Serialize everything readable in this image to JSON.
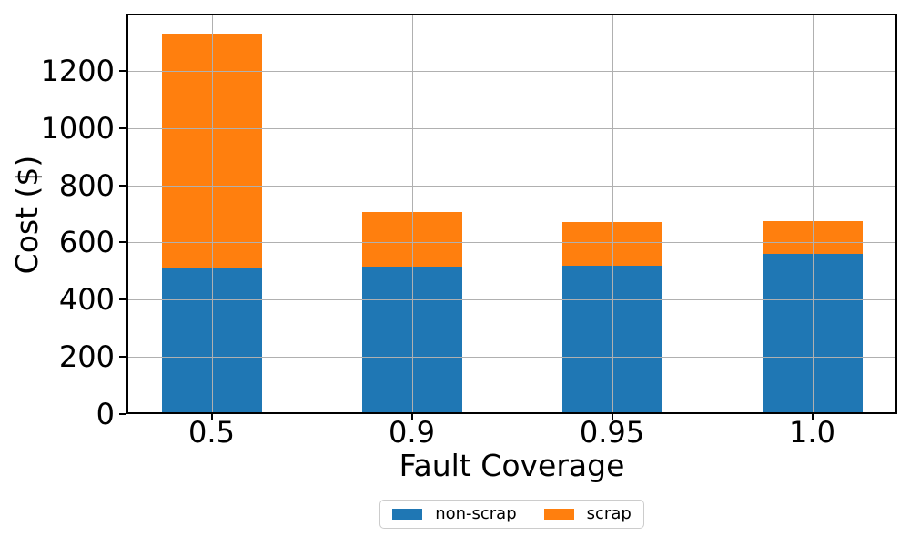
{
  "chart_data": {
    "type": "bar",
    "stacked": true,
    "orientation": "vertical",
    "title": "",
    "xlabel": "Fault Coverage",
    "ylabel": "Cost ($)",
    "categories": [
      "0.5",
      "0.9",
      "0.95",
      "1.0"
    ],
    "series": [
      {
        "name": "non-scrap",
        "color": "#1f77b4",
        "values": [
          510,
          515,
          520,
          560
        ]
      },
      {
        "name": "scrap",
        "color": "#ff7f0e",
        "values": [
          820,
          190,
          150,
          115
        ]
      }
    ],
    "stack_totals": [
      1330,
      705,
      670,
      675
    ],
    "ylim": [
      0,
      1400
    ],
    "yticks": [
      0,
      200,
      400,
      600,
      800,
      1000,
      1200
    ],
    "xlim_units": [
      -0.425,
      3.425
    ],
    "bar_width_units": 0.5,
    "grid": true,
    "grid_over_bars": true,
    "grid_color": "#b0b0b0",
    "legend_position": "bottom-center"
  },
  "axes": {
    "xlabel": "Fault Coverage",
    "ylabel": "Cost ($)"
  },
  "legend": {
    "items": [
      {
        "label": "non-scrap",
        "color": "#1f77b4"
      },
      {
        "label": "scrap",
        "color": "#ff7f0e"
      }
    ]
  },
  "colors": {
    "background": "#ffffff",
    "spine": "#000000",
    "grid": "#b0b0b0",
    "non_scrap": "#1f77b4",
    "scrap": "#ff7f0e"
  }
}
